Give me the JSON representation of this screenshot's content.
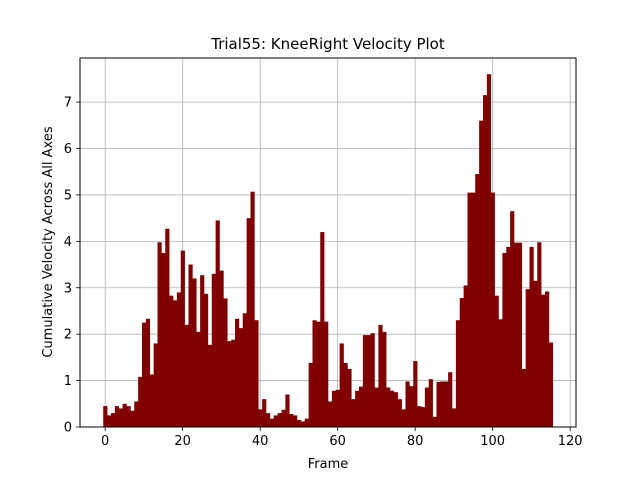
{
  "chart_data": {
    "type": "bar",
    "title": "Trial55: KneeRight Velocity Plot",
    "xlabel": "Frame",
    "ylabel": "Cumulative Velocity Across All Axes",
    "xlim": [
      -6.5,
      121.5
    ],
    "ylim": [
      0,
      7.95
    ],
    "xticks": [
      0,
      20,
      40,
      60,
      80,
      100,
      120
    ],
    "yticks": [
      0,
      1,
      2,
      3,
      4,
      5,
      6,
      7
    ],
    "grid": true,
    "bar_color": "#800000",
    "x": [
      0,
      1,
      2,
      3,
      4,
      5,
      6,
      7,
      8,
      9,
      10,
      11,
      12,
      13,
      14,
      15,
      16,
      17,
      18,
      19,
      20,
      21,
      22,
      23,
      24,
      25,
      26,
      27,
      28,
      29,
      30,
      31,
      32,
      33,
      34,
      35,
      36,
      37,
      38,
      39,
      40,
      41,
      42,
      43,
      44,
      45,
      46,
      47,
      48,
      49,
      50,
      51,
      52,
      53,
      54,
      55,
      56,
      57,
      58,
      59,
      60,
      61,
      62,
      63,
      64,
      65,
      66,
      67,
      68,
      69,
      70,
      71,
      72,
      73,
      74,
      75,
      76,
      77,
      78,
      79,
      80,
      81,
      82,
      83,
      84,
      85,
      86,
      87,
      88,
      89,
      90,
      91,
      92,
      93,
      94,
      95,
      96,
      97,
      98,
      99,
      100,
      101,
      102,
      103,
      104,
      105,
      106,
      107,
      108,
      109,
      110,
      111,
      112,
      113,
      114,
      115,
      116
    ],
    "values": [
      0.45,
      0.25,
      0.3,
      0.45,
      0.4,
      0.5,
      0.45,
      0.35,
      0.55,
      1.08,
      2.25,
      2.33,
      1.13,
      1.8,
      3.98,
      3.75,
      4.27,
      2.83,
      2.73,
      2.9,
      3.8,
      2.2,
      3.5,
      3.2,
      2.05,
      3.27,
      2.87,
      1.77,
      3.3,
      4.45,
      3.37,
      2.77,
      1.85,
      1.88,
      2.33,
      2.13,
      2.45,
      4.5,
      5.07,
      2.3,
      0.38,
      0.6,
      0.3,
      0.18,
      0.25,
      0.3,
      0.37,
      0.7,
      0.28,
      0.25,
      0.15,
      0.12,
      0.18,
      1.38,
      2.3,
      2.27,
      4.2,
      2.27,
      0.55,
      0.78,
      0.8,
      1.8,
      1.38,
      1.25,
      0.6,
      0.78,
      0.87,
      1.98,
      1.98,
      2.02,
      0.85,
      2.2,
      2.05,
      0.85,
      0.78,
      0.75,
      0.6,
      0.38,
      0.98,
      0.88,
      1.42,
      0.45,
      0.43,
      0.85,
      1.03,
      0.22,
      0.97,
      0.98,
      0.98,
      1.18,
      0.4,
      2.3,
      2.78,
      3.05,
      5.05,
      5.05,
      5.45,
      6.6,
      7.15,
      7.6,
      5.05,
      2.83,
      2.32,
      3.75,
      3.88,
      4.65,
      3.97,
      3.97,
      1.25,
      2.97,
      3.88,
      3.15,
      3.98,
      2.85,
      2.92,
      1.82,
      0
    ]
  }
}
